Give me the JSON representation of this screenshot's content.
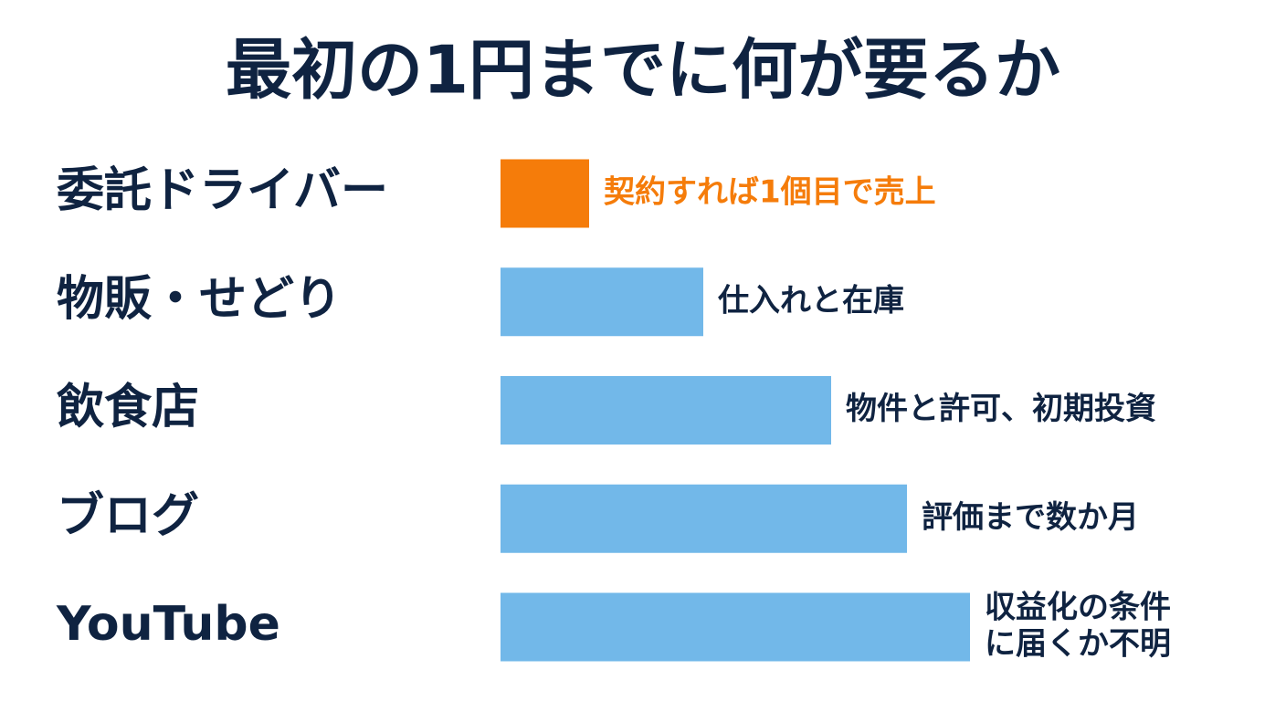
{
  "chart_data": {
    "type": "bar",
    "orientation": "horizontal",
    "title": "最初の1円までに何が要るか",
    "categories": [
      "委託ドライバー",
      "物販・せどり",
      "飲食店",
      "ブログ",
      "YouTube"
    ],
    "values": [
      97,
      222,
      362,
      445,
      514
    ],
    "colors": [
      "#f57c0a",
      "#72b8e9",
      "#72b8e9",
      "#72b8e9",
      "#72b8e9"
    ],
    "annotation_colors": [
      "#f57c0a",
      "#0f2341",
      "#0f2341",
      "#0f2341",
      "#0f2341"
    ],
    "annotations": [
      [
        "契約すれば1個目で売上"
      ],
      [
        "仕入れと在庫"
      ],
      [
        "物件と許可、初期投資"
      ],
      [
        "評価まで数か月"
      ],
      [
        "収益化の条件",
        "に届くか不明"
      ]
    ],
    "xlim": [
      0,
      514
    ]
  }
}
